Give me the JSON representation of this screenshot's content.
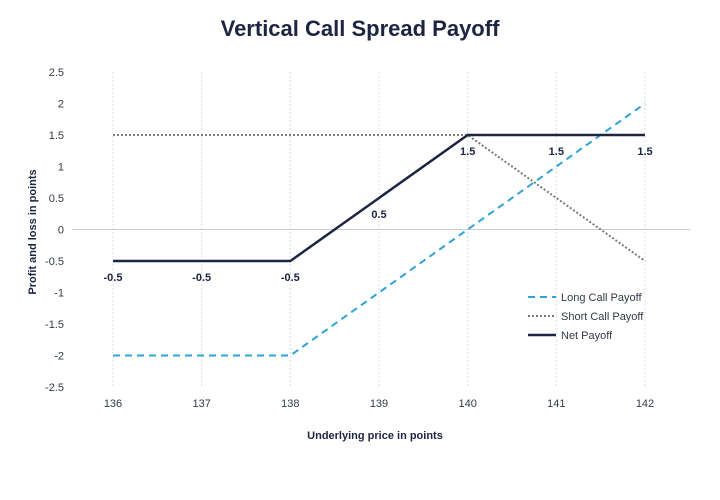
{
  "chart_data": {
    "type": "line",
    "title": "Vertical Call Spread Payoff",
    "xlabel": "Underlying price in points",
    "ylabel": "Profit and loss in points",
    "x": [
      136,
      137,
      138,
      139,
      140,
      141,
      142
    ],
    "xlim": [
      136,
      142
    ],
    "ylim": [
      -2.5,
      2.5
    ],
    "y_ticks": [
      "2.5",
      "2",
      "1.5",
      "1",
      "0.5",
      "0",
      "-0.5",
      "-1",
      "-1.5",
      "-2",
      "-2.5"
    ],
    "x_ticks": [
      "136",
      "137",
      "138",
      "139",
      "140",
      "141",
      "142"
    ],
    "grid": "vertical",
    "legend_position": "bottom-right",
    "series": [
      {
        "name": "Long Call Payoff",
        "style": "dashed",
        "color": "#2ea3d8",
        "points": [
          [
            136,
            -2
          ],
          [
            138,
            -2
          ],
          [
            142,
            2
          ]
        ]
      },
      {
        "name": "Short Call Payoff",
        "style": "dotted",
        "color": "#7a7a7a",
        "points": [
          [
            136,
            1.5
          ],
          [
            140,
            1.5
          ],
          [
            142,
            -0.5
          ]
        ]
      },
      {
        "name": "Net Payoff",
        "style": "solid",
        "color": "#1c2541",
        "points": [
          [
            136,
            -0.5
          ],
          [
            138,
            -0.5
          ],
          [
            140,
            1.5
          ],
          [
            142,
            1.5
          ]
        ]
      }
    ],
    "data_labels": [
      {
        "x": 136,
        "y": -0.5,
        "text": "-0.5",
        "pos": "below"
      },
      {
        "x": 137,
        "y": -0.5,
        "text": "-0.5",
        "pos": "below"
      },
      {
        "x": 138,
        "y": -0.5,
        "text": "-0.5",
        "pos": "below"
      },
      {
        "x": 139,
        "y": 0.5,
        "text": "0.5",
        "pos": "below"
      },
      {
        "x": 140,
        "y": 1.5,
        "text": "1.5",
        "pos": "below"
      },
      {
        "x": 141,
        "y": 1.5,
        "text": "1.5",
        "pos": "below"
      },
      {
        "x": 142,
        "y": 1.5,
        "text": "1.5",
        "pos": "below"
      }
    ]
  }
}
